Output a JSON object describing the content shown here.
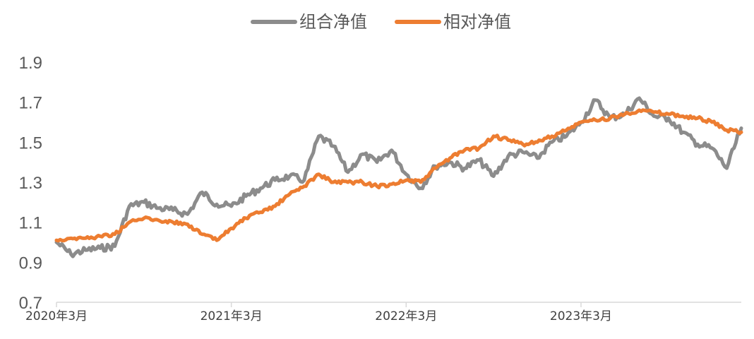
{
  "chart_data": {
    "type": "line",
    "title": "",
    "xlabel": "",
    "ylabel": "",
    "ylim": [
      0.7,
      1.9
    ],
    "y_ticks": [
      "0.7",
      "0.9",
      "1.1",
      "1.3",
      "1.5",
      "1.7",
      "1.9"
    ],
    "y_tick_values": [
      0.7,
      0.9,
      1.1,
      1.3,
      1.5,
      1.7,
      1.9
    ],
    "x_ticks": [
      "2020年3月",
      "2021年3月",
      "2022年3月",
      "2023年3月"
    ],
    "x_tick_values": [
      "2020-03",
      "2021-03",
      "2022-03",
      "2023-03"
    ],
    "xlim": [
      "2020-03",
      "2024-02"
    ],
    "legend_position": "top-center",
    "grid": false,
    "series": [
      {
        "name": "组合净值",
        "color": "#8c8c8c",
        "points": [
          [
            "2020-03",
            1.0
          ],
          [
            "2020-04",
            0.94
          ],
          [
            "2020-05",
            0.96
          ],
          [
            "2020-06",
            0.97
          ],
          [
            "2020-07",
            0.98
          ],
          [
            "2020-08",
            1.18
          ],
          [
            "2020-09",
            1.2
          ],
          [
            "2020-10",
            1.17
          ],
          [
            "2020-11",
            1.16
          ],
          [
            "2020-12",
            1.14
          ],
          [
            "2021-01",
            1.25
          ],
          [
            "2021-02",
            1.19
          ],
          [
            "2021-03",
            1.18
          ],
          [
            "2021-04",
            1.23
          ],
          [
            "2021-05",
            1.27
          ],
          [
            "2021-06",
            1.31
          ],
          [
            "2021-07",
            1.33
          ],
          [
            "2021-08",
            1.31
          ],
          [
            "2021-09",
            1.53
          ],
          [
            "2021-10",
            1.48
          ],
          [
            "2021-11",
            1.35
          ],
          [
            "2021-12",
            1.44
          ],
          [
            "2022-01",
            1.4
          ],
          [
            "2022-02",
            1.46
          ],
          [
            "2022-03",
            1.34
          ],
          [
            "2022-04",
            1.27
          ],
          [
            "2022-05",
            1.38
          ],
          [
            "2022-06",
            1.4
          ],
          [
            "2022-07",
            1.37
          ],
          [
            "2022-08",
            1.41
          ],
          [
            "2022-09",
            1.33
          ],
          [
            "2022-10",
            1.43
          ],
          [
            "2022-11",
            1.45
          ],
          [
            "2022-12",
            1.42
          ],
          [
            "2023-01",
            1.5
          ],
          [
            "2023-02",
            1.53
          ],
          [
            "2023-03",
            1.6
          ],
          [
            "2023-04",
            1.71
          ],
          [
            "2023-05",
            1.62
          ],
          [
            "2023-06",
            1.64
          ],
          [
            "2023-07",
            1.72
          ],
          [
            "2023-08",
            1.63
          ],
          [
            "2023-09",
            1.62
          ],
          [
            "2023-10",
            1.55
          ],
          [
            "2023-11",
            1.49
          ],
          [
            "2023-12",
            1.47
          ],
          [
            "2024-01",
            1.37
          ],
          [
            "2024-02",
            1.57
          ]
        ]
      },
      {
        "name": "相对净值",
        "color": "#ed7d31",
        "points": [
          [
            "2020-03",
            1.01
          ],
          [
            "2020-04",
            1.02
          ],
          [
            "2020-05",
            1.02
          ],
          [
            "2020-06",
            1.03
          ],
          [
            "2020-07",
            1.04
          ],
          [
            "2020-08",
            1.1
          ],
          [
            "2020-09",
            1.12
          ],
          [
            "2020-10",
            1.11
          ],
          [
            "2020-11",
            1.1
          ],
          [
            "2020-12",
            1.09
          ],
          [
            "2021-01",
            1.04
          ],
          [
            "2021-02",
            1.01
          ],
          [
            "2021-03",
            1.07
          ],
          [
            "2021-04",
            1.12
          ],
          [
            "2021-05",
            1.15
          ],
          [
            "2021-06",
            1.18
          ],
          [
            "2021-07",
            1.24
          ],
          [
            "2021-08",
            1.28
          ],
          [
            "2021-09",
            1.34
          ],
          [
            "2021-10",
            1.3
          ],
          [
            "2021-11",
            1.3
          ],
          [
            "2021-12",
            1.3
          ],
          [
            "2022-01",
            1.28
          ],
          [
            "2022-02",
            1.29
          ],
          [
            "2022-03",
            1.31
          ],
          [
            "2022-04",
            1.3
          ],
          [
            "2022-05",
            1.37
          ],
          [
            "2022-06",
            1.42
          ],
          [
            "2022-07",
            1.46
          ],
          [
            "2022-08",
            1.47
          ],
          [
            "2022-09",
            1.53
          ],
          [
            "2022-10",
            1.51
          ],
          [
            "2022-11",
            1.49
          ],
          [
            "2022-12",
            1.5
          ],
          [
            "2023-01",
            1.53
          ],
          [
            "2023-02",
            1.56
          ],
          [
            "2023-03",
            1.6
          ],
          [
            "2023-04",
            1.61
          ],
          [
            "2023-05",
            1.62
          ],
          [
            "2023-06",
            1.64
          ],
          [
            "2023-07",
            1.66
          ],
          [
            "2023-08",
            1.65
          ],
          [
            "2023-09",
            1.64
          ],
          [
            "2023-10",
            1.63
          ],
          [
            "2023-11",
            1.62
          ],
          [
            "2023-12",
            1.6
          ],
          [
            "2024-01",
            1.56
          ],
          [
            "2024-02",
            1.55
          ]
        ]
      }
    ]
  }
}
